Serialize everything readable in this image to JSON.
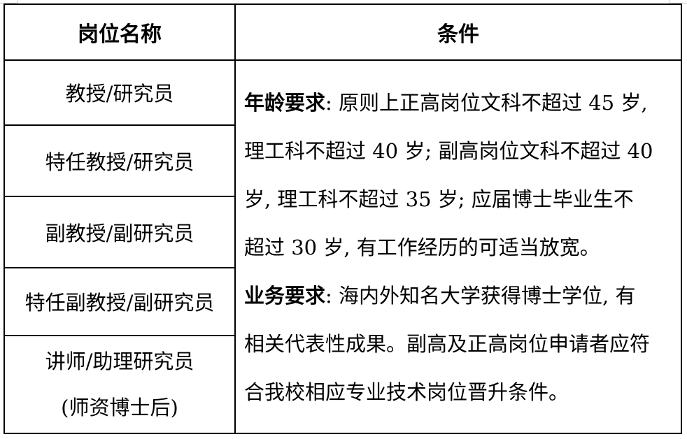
{
  "table": {
    "headers": [
      "岗位名称",
      "条件"
    ],
    "positions": [
      [
        "教授/研究员"
      ],
      [
        "特任教授/研究员"
      ],
      [
        "副教授/副研究员"
      ],
      [
        "特任副教授/副研究员"
      ],
      [
        "讲师/助理研究员",
        "(师资博士后)"
      ]
    ],
    "conditions": {
      "age_label": "年龄要求",
      "age_lines": [
        ": 原则上正高岗位文科不超过 45 岁,",
        "理工科不超过 40 岁; 副高岗位文科不超过 40",
        "岁, 理工科不超过 35 岁; 应届博士毕业生不",
        "超过 30 岁, 有工作经历的可适当放宽。"
      ],
      "business_label": "业务要求",
      "business_lines": [
        ": 海内外知名大学获得博士学位, 有",
        "相关代表性成果。副高及正高岗位申请者应符",
        "合我校相应专业技术岗位晋升条件。"
      ]
    }
  }
}
